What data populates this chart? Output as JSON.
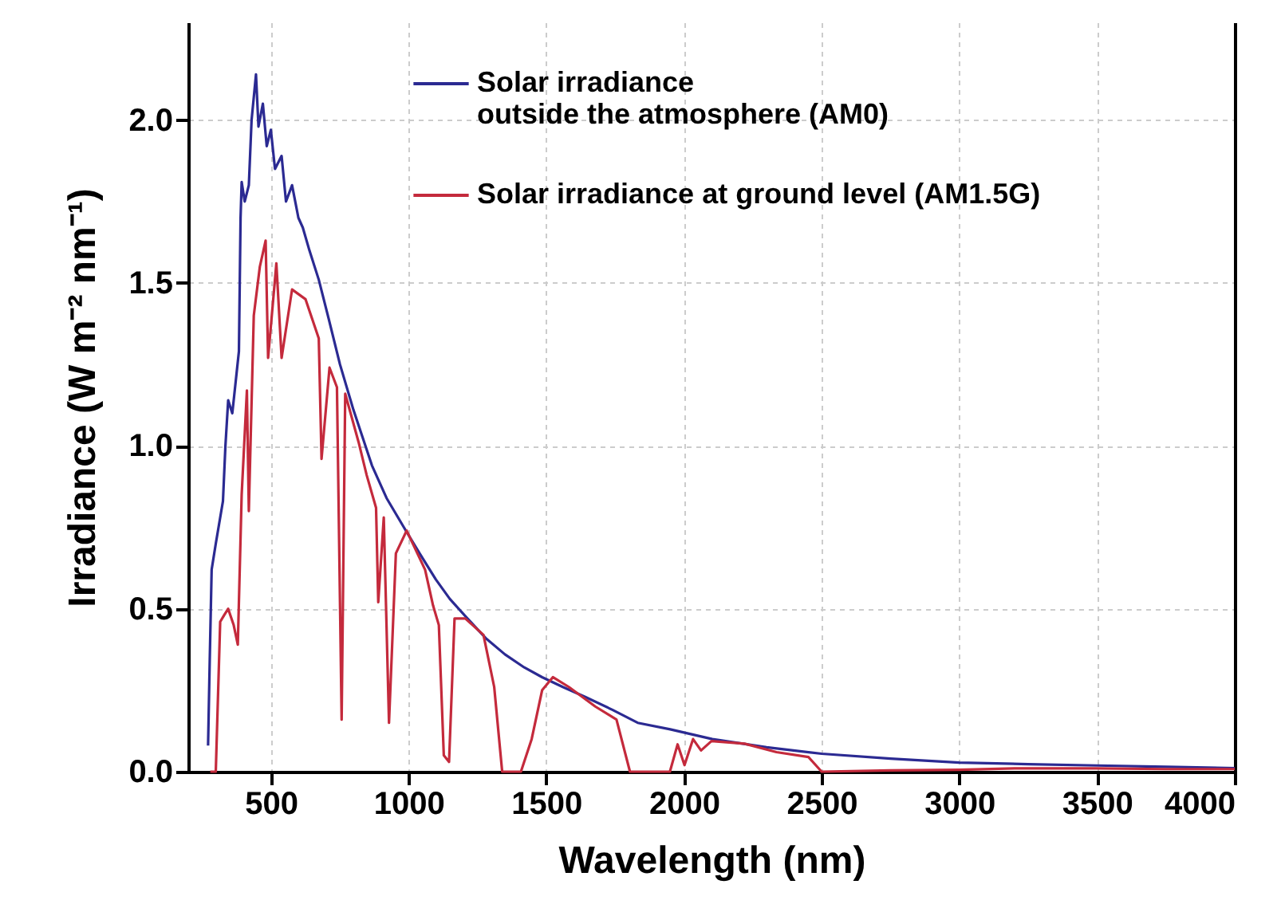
{
  "chart_data": {
    "type": "line",
    "xlabel": "Wavelength (nm)",
    "ylabel": "Irradiance (W m⁻² nm⁻¹)",
    "xlim": [
      200,
      4000
    ],
    "xticks": [
      500,
      1000,
      1500,
      2000,
      2500,
      3000,
      3500,
      4000
    ],
    "ylim": [
      0,
      2.3
    ],
    "yticks": [
      {
        "value": 0,
        "label": "0.0"
      },
      0.5,
      {
        "value": 1,
        "label": "1.0"
      },
      1.5,
      {
        "value": 2,
        "label": "2.0"
      }
    ],
    "grid": true,
    "legend": "top right",
    "marker": "none",
    "line_style": "solid",
    "series": [
      {
        "name": "Solar irradiance\noutside the atmosphere (AM0)",
        "color": "#2b2a92",
        "x": [
          272,
          278,
          285,
          300,
          326,
          335,
          345,
          360,
          384,
          390,
          394,
          405,
          420,
          430,
          446,
          455,
          471,
          485,
          500,
          515,
          539,
          555,
          577,
          600,
          616,
          640,
          674,
          710,
          751,
          800,
          867,
          920,
          983,
          1040,
          1099,
          1150,
          1214,
          1280,
          1350,
          1420,
          1485,
          1560,
          1640,
          1740,
          1832,
          1950,
          2103,
          2300,
          2500,
          2750,
          3000,
          3250,
          3500,
          3750,
          4000
        ],
        "values": [
          0.08,
          0.34,
          0.62,
          0.7,
          0.83,
          1.0,
          1.14,
          1.1,
          1.29,
          1.7,
          1.81,
          1.75,
          1.8,
          2.0,
          2.14,
          1.98,
          2.05,
          1.92,
          1.97,
          1.85,
          1.89,
          1.75,
          1.8,
          1.7,
          1.67,
          1.6,
          1.51,
          1.39,
          1.25,
          1.11,
          0.94,
          0.84,
          0.75,
          0.67,
          0.59,
          0.53,
          0.47,
          0.41,
          0.36,
          0.32,
          0.29,
          0.26,
          0.23,
          0.19,
          0.15,
          0.13,
          0.1,
          0.075,
          0.055,
          0.04,
          0.028,
          0.023,
          0.019,
          0.015,
          0.011
        ]
      },
      {
        "name": "Solar irradiance at ground level (AM1.5G)",
        "color": "#c42a3c",
        "x": [
          280,
          300,
          316,
          330,
          345,
          365,
          380,
          394,
          413,
          420,
          438,
          460,
          481,
          490,
          520,
          539,
          577,
          626,
          674,
          684,
          713,
          740,
          757,
          770,
          819,
          848,
          882,
          890,
          910,
          929,
          954,
          993,
          1060,
          1089,
          1110,
          1128,
          1147,
          1167,
          1206,
          1272,
          1311,
          1340,
          1408,
          1447,
          1485,
          1524,
          1582,
          1678,
          1755,
          1804,
          1949,
          1977,
          2002,
          2033,
          2062,
          2100,
          2220,
          2336,
          2452,
          2500,
          2750,
          3000,
          3200,
          3500,
          3750,
          4000
        ],
        "values": [
          0,
          0,
          0.46,
          0.48,
          0.5,
          0.45,
          0.39,
          0.85,
          1.17,
          0.8,
          1.4,
          1.55,
          1.63,
          1.27,
          1.56,
          1.27,
          1.48,
          1.45,
          1.33,
          0.96,
          1.24,
          1.18,
          0.16,
          1.16,
          1.01,
          0.91,
          0.81,
          0.52,
          0.78,
          0.15,
          0.67,
          0.74,
          0.62,
          0.51,
          0.45,
          0.05,
          0.03,
          0.47,
          0.47,
          0.42,
          0.26,
          0,
          0,
          0.1,
          0.25,
          0.29,
          0.26,
          0.2,
          0.16,
          0,
          0,
          0.084,
          0.02,
          0.1,
          0.065,
          0.094,
          0.086,
          0.06,
          0.045,
          0,
          0.004,
          0.006,
          0.01,
          0.01,
          0.008,
          0.008
        ]
      }
    ]
  }
}
